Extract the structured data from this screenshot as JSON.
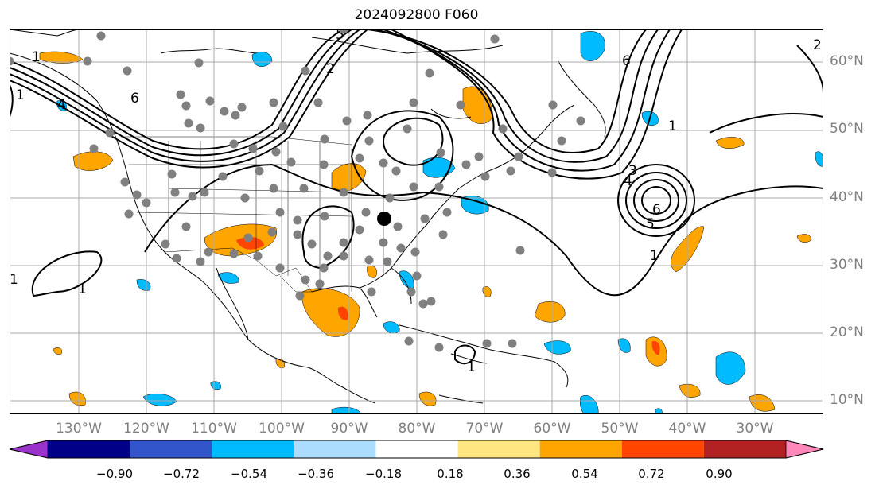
{
  "title": "2024092800 F060",
  "lat_labels": [
    "60°N",
    "50°N",
    "40°N",
    "30°N",
    "20°N",
    "10°N"
  ],
  "lon_labels": [
    "130°W",
    "120°W",
    "110°W",
    "100°W",
    "90°W",
    "80°W",
    "70°W",
    "60°W",
    "50°W",
    "40°W",
    "30°W"
  ],
  "colorbar": {
    "ticks": [
      "−0.90",
      "−0.72",
      "−0.54",
      "−0.36",
      "−0.18",
      "0.18",
      "0.36",
      "0.54",
      "0.72",
      "0.90"
    ],
    "colors": [
      "#9933cc",
      "#000088",
      "#3355cc",
      "#00bbff",
      "#aaddff",
      "#ffffff",
      "#ffe680",
      "#ffa500",
      "#ff4500",
      "#b22222",
      "#ff88bb"
    ]
  },
  "contour_labels": [
    "6",
    "2",
    "1",
    "1",
    "4",
    "1",
    "3",
    "4",
    "5",
    "6",
    "1",
    "2",
    "1",
    "5",
    "1",
    "6",
    "1"
  ],
  "colors": {
    "contour": "#000000",
    "station": "#808080",
    "grid": "#aaaaaa",
    "positive": "#ffa500",
    "negative": "#00bbff"
  }
}
